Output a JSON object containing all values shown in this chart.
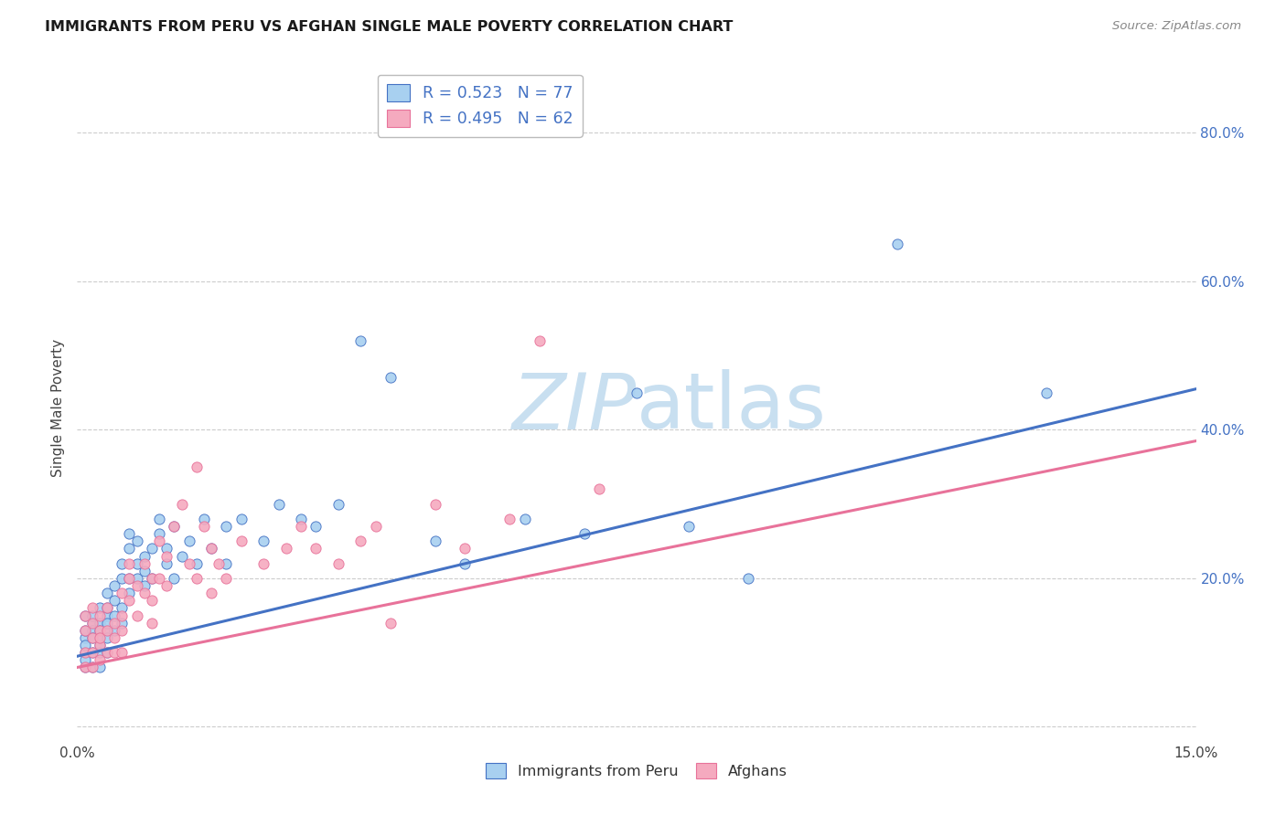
{
  "title": "IMMIGRANTS FROM PERU VS AFGHAN SINGLE MALE POVERTY CORRELATION CHART",
  "source": "Source: ZipAtlas.com",
  "ylabel": "Single Male Poverty",
  "xlim": [
    0.0,
    0.15
  ],
  "ylim": [
    -0.02,
    0.88
  ],
  "xticks": [
    0.0,
    0.05,
    0.1,
    0.15
  ],
  "xtick_labels": [
    "0.0%",
    "",
    "",
    "15.0%"
  ],
  "ytick_positions_right": [
    0.0,
    0.2,
    0.4,
    0.6,
    0.8
  ],
  "ytick_labels_right": [
    "",
    "20.0%",
    "40.0%",
    "60.0%",
    "80.0%"
  ],
  "legend_line1": "R = 0.523   N = 77",
  "legend_line2": "R = 0.495   N = 62",
  "legend_label1": "Immigrants from Peru",
  "legend_label2": "Afghans",
  "color_peru": "#A8D0F0",
  "color_afghan": "#F5AABF",
  "color_line_peru": "#4472C4",
  "color_line_afghan": "#E8729A",
  "watermark_color": "#C8DFF0",
  "background_color": "#FFFFFF",
  "grid_color": "#CCCCCC",
  "peru_line_x0": 0.0,
  "peru_line_y0": 0.095,
  "peru_line_x1": 0.15,
  "peru_line_y1": 0.455,
  "afghan_line_x0": 0.0,
  "afghan_line_y0": 0.08,
  "afghan_line_x1": 0.15,
  "afghan_line_y1": 0.385,
  "peru_x": [
    0.001,
    0.001,
    0.001,
    0.001,
    0.001,
    0.001,
    0.001,
    0.002,
    0.002,
    0.002,
    0.002,
    0.002,
    0.002,
    0.003,
    0.003,
    0.003,
    0.003,
    0.003,
    0.003,
    0.003,
    0.004,
    0.004,
    0.004,
    0.004,
    0.004,
    0.004,
    0.004,
    0.005,
    0.005,
    0.005,
    0.005,
    0.006,
    0.006,
    0.006,
    0.006,
    0.007,
    0.007,
    0.007,
    0.007,
    0.008,
    0.008,
    0.008,
    0.009,
    0.009,
    0.009,
    0.01,
    0.01,
    0.011,
    0.011,
    0.012,
    0.012,
    0.013,
    0.013,
    0.014,
    0.015,
    0.016,
    0.017,
    0.018,
    0.02,
    0.02,
    0.022,
    0.025,
    0.027,
    0.03,
    0.032,
    0.035,
    0.038,
    0.042,
    0.048,
    0.052,
    0.06,
    0.068,
    0.075,
    0.082,
    0.09,
    0.11,
    0.13
  ],
  "peru_y": [
    0.1,
    0.12,
    0.08,
    0.15,
    0.13,
    0.11,
    0.09,
    0.14,
    0.1,
    0.13,
    0.12,
    0.15,
    0.08,
    0.14,
    0.11,
    0.13,
    0.1,
    0.16,
    0.08,
    0.12,
    0.15,
    0.13,
    0.18,
    0.1,
    0.16,
    0.14,
    0.12,
    0.17,
    0.15,
    0.19,
    0.13,
    0.2,
    0.16,
    0.14,
    0.22,
    0.24,
    0.2,
    0.18,
    0.26,
    0.22,
    0.2,
    0.25,
    0.23,
    0.19,
    0.21,
    0.24,
    0.2,
    0.26,
    0.28,
    0.24,
    0.22,
    0.27,
    0.2,
    0.23,
    0.25,
    0.22,
    0.28,
    0.24,
    0.22,
    0.27,
    0.28,
    0.25,
    0.3,
    0.28,
    0.27,
    0.3,
    0.52,
    0.47,
    0.25,
    0.22,
    0.28,
    0.26,
    0.45,
    0.27,
    0.2,
    0.65,
    0.45
  ],
  "afghan_x": [
    0.001,
    0.001,
    0.001,
    0.001,
    0.002,
    0.002,
    0.002,
    0.002,
    0.002,
    0.003,
    0.003,
    0.003,
    0.003,
    0.003,
    0.004,
    0.004,
    0.004,
    0.005,
    0.005,
    0.005,
    0.006,
    0.006,
    0.006,
    0.006,
    0.007,
    0.007,
    0.007,
    0.008,
    0.008,
    0.009,
    0.009,
    0.01,
    0.01,
    0.01,
    0.011,
    0.011,
    0.012,
    0.012,
    0.013,
    0.014,
    0.015,
    0.016,
    0.016,
    0.017,
    0.018,
    0.018,
    0.019,
    0.02,
    0.022,
    0.025,
    0.028,
    0.03,
    0.032,
    0.035,
    0.038,
    0.04,
    0.042,
    0.048,
    0.052,
    0.058,
    0.062,
    0.07
  ],
  "afghan_y": [
    0.13,
    0.1,
    0.15,
    0.08,
    0.12,
    0.14,
    0.1,
    0.16,
    0.08,
    0.13,
    0.11,
    0.15,
    0.09,
    0.12,
    0.16,
    0.1,
    0.13,
    0.14,
    0.12,
    0.1,
    0.18,
    0.15,
    0.13,
    0.1,
    0.2,
    0.17,
    0.22,
    0.19,
    0.15,
    0.22,
    0.18,
    0.2,
    0.17,
    0.14,
    0.25,
    0.2,
    0.23,
    0.19,
    0.27,
    0.3,
    0.22,
    0.35,
    0.2,
    0.27,
    0.18,
    0.24,
    0.22,
    0.2,
    0.25,
    0.22,
    0.24,
    0.27,
    0.24,
    0.22,
    0.25,
    0.27,
    0.14,
    0.3,
    0.24,
    0.28,
    0.52,
    0.32
  ]
}
